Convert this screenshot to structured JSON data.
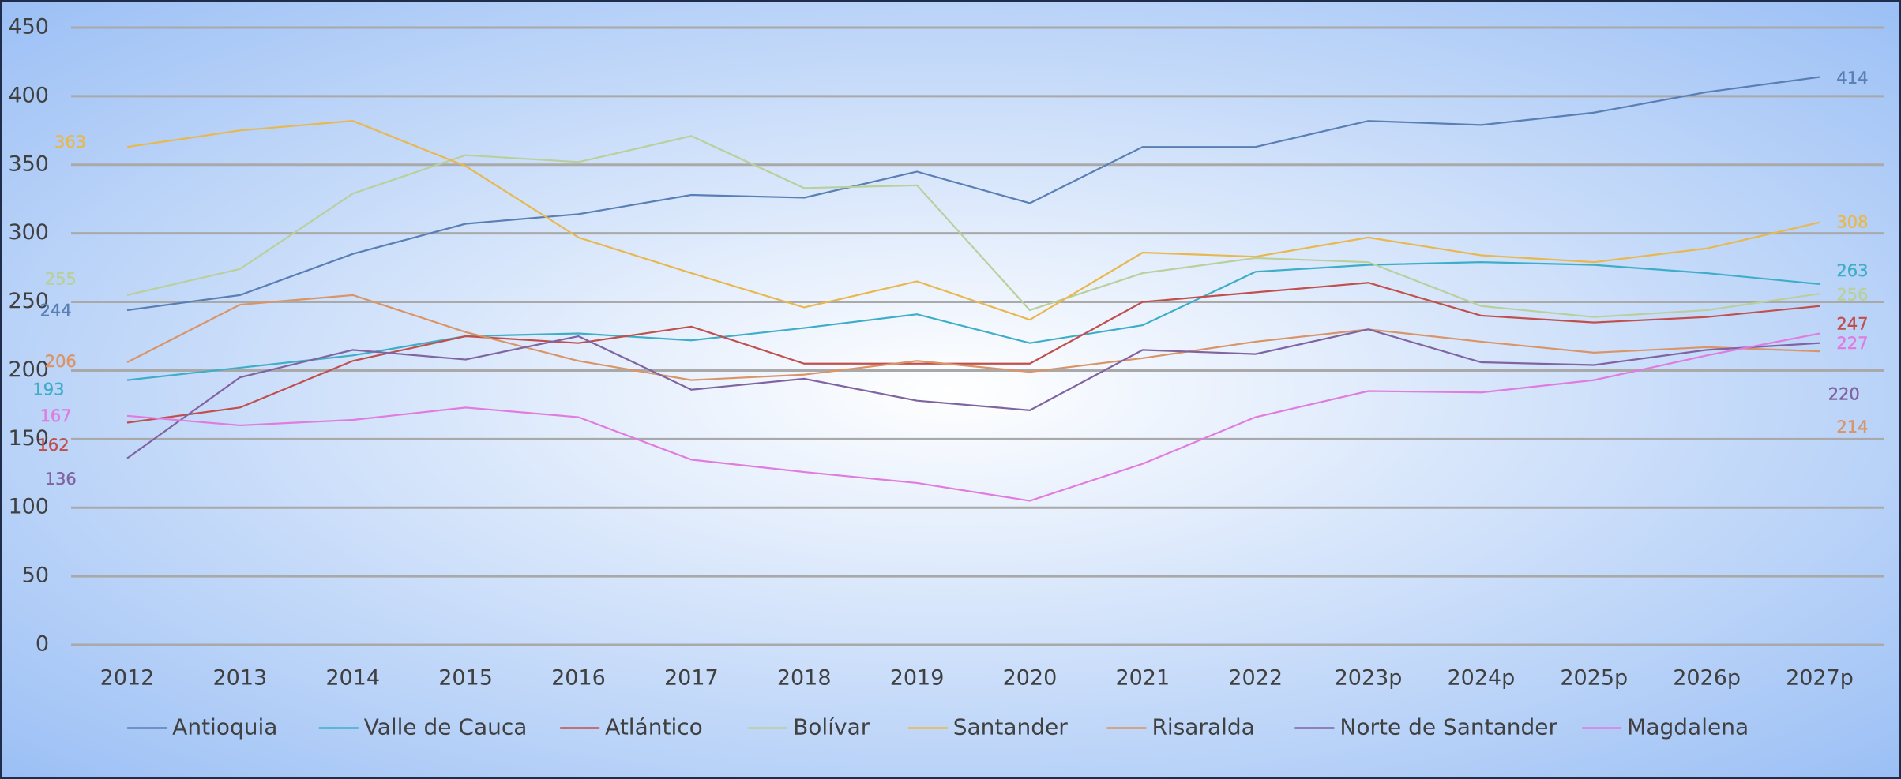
{
  "chart_data": {
    "type": "line",
    "categories": [
      "2012",
      "2013",
      "2014",
      "2015",
      "2016",
      "2017",
      "2018",
      "2019",
      "2020",
      "2021",
      "2022",
      "2023p",
      "2024p",
      "2025p",
      "2026p",
      "2027p"
    ],
    "ylim": [
      0,
      450
    ],
    "yticks": [
      0,
      50,
      100,
      150,
      200,
      250,
      300,
      350,
      400,
      450
    ],
    "grid": true,
    "legend": "bottom",
    "series": [
      {
        "name": "Antioquia",
        "color": "#5a7fb5",
        "values": [
          244,
          255,
          285,
          307,
          314,
          328,
          326,
          345,
          322,
          363,
          363,
          382,
          379,
          388,
          403,
          414
        ]
      },
      {
        "name": "Valle de Cauca",
        "color": "#3eaec8",
        "values": [
          193,
          202,
          211,
          225,
          227,
          222,
          231,
          241,
          220,
          233,
          272,
          277,
          279,
          277,
          271,
          263
        ]
      },
      {
        "name": "Atlántico",
        "color": "#c0504d",
        "values": [
          162,
          173,
          207,
          225,
          220,
          232,
          205,
          205,
          205,
          250,
          257,
          264,
          240,
          235,
          239,
          247
        ]
      },
      {
        "name": "Bolívar",
        "color": "#b9cf9c",
        "values": [
          255,
          274,
          329,
          357,
          352,
          371,
          333,
          335,
          244,
          271,
          282,
          279,
          247,
          239,
          244,
          256
        ]
      },
      {
        "name": "Santander",
        "color": "#e8b84f",
        "values": [
          363,
          375,
          382,
          349,
          297,
          271,
          246,
          265,
          237,
          286,
          283,
          297,
          284,
          279,
          289,
          308
        ]
      },
      {
        "name": "Risaralda",
        "color": "#d99468",
        "values": [
          206,
          248,
          255,
          228,
          207,
          193,
          197,
          207,
          199,
          209,
          221,
          230,
          221,
          213,
          217,
          214
        ]
      },
      {
        "name": "Norte de Santander",
        "color": "#8064a2",
        "values": [
          136,
          195,
          215,
          208,
          225,
          186,
          194,
          178,
          171,
          215,
          212,
          230,
          206,
          204,
          215,
          220
        ]
      },
      {
        "name": "Magdalena",
        "color": "#e07be0",
        "values": [
          167,
          160,
          164,
          173,
          166,
          135,
          126,
          118,
          105,
          132,
          166,
          185,
          184,
          193,
          211,
          227
        ]
      }
    ]
  }
}
